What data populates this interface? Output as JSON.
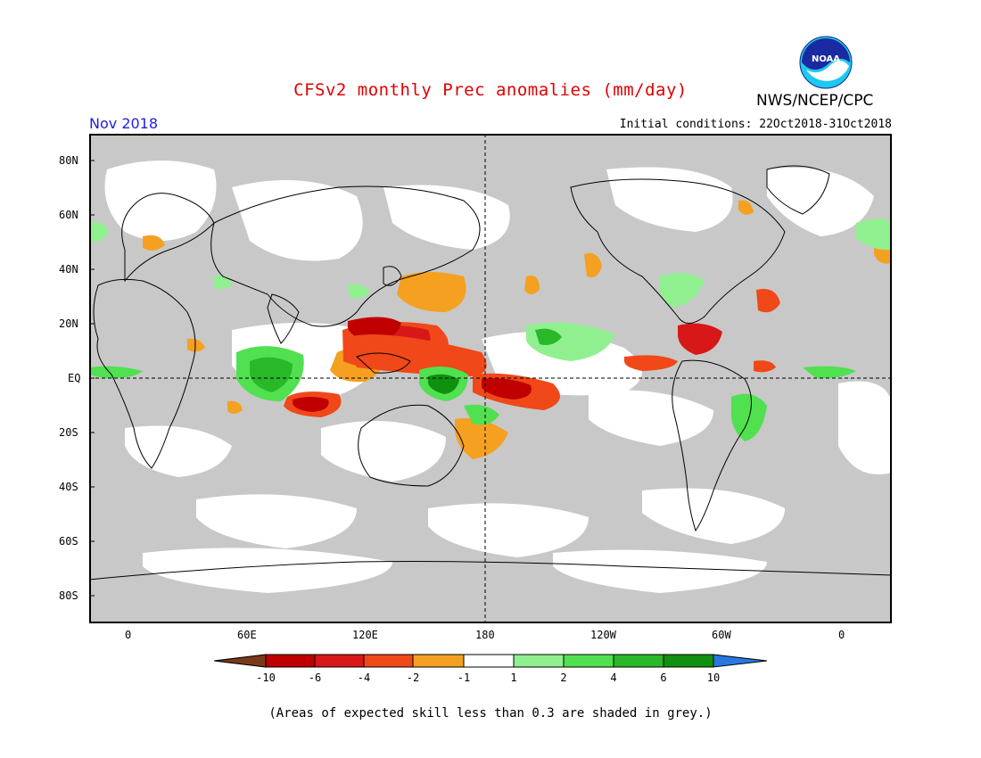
{
  "header": {
    "title": "CFSv2 monthly Prec anomalies (mm/day)",
    "org": "NWS/NCEP/CPC",
    "logo_text": "NOAA",
    "month": "Nov 2018",
    "initial_conditions": "Initial conditions: 22Oct2018-31Oct2018"
  },
  "map": {
    "lat_labels": [
      "80N",
      "60N",
      "40N",
      "20N",
      "EQ",
      "20S",
      "40S",
      "60S",
      "80S"
    ],
    "lon_labels": [
      "0",
      "60E",
      "120E",
      "180",
      "120W",
      "60W",
      "0"
    ],
    "skill_mask_color": "#c8c8c8"
  },
  "colorbar": {
    "labels": [
      "-10",
      "-6",
      "-4",
      "-2",
      "-1",
      "1",
      "2",
      "4",
      "6",
      "10"
    ],
    "colors": [
      "#7a3a1a",
      "#c00000",
      "#d81818",
      "#f04818",
      "#f5a020",
      "#ffffff",
      "#90f090",
      "#50e050",
      "#28b828",
      "#109010",
      "#2878e0"
    ]
  },
  "footer": "(Areas of expected skill less than 0.3 are shaded in grey.)"
}
